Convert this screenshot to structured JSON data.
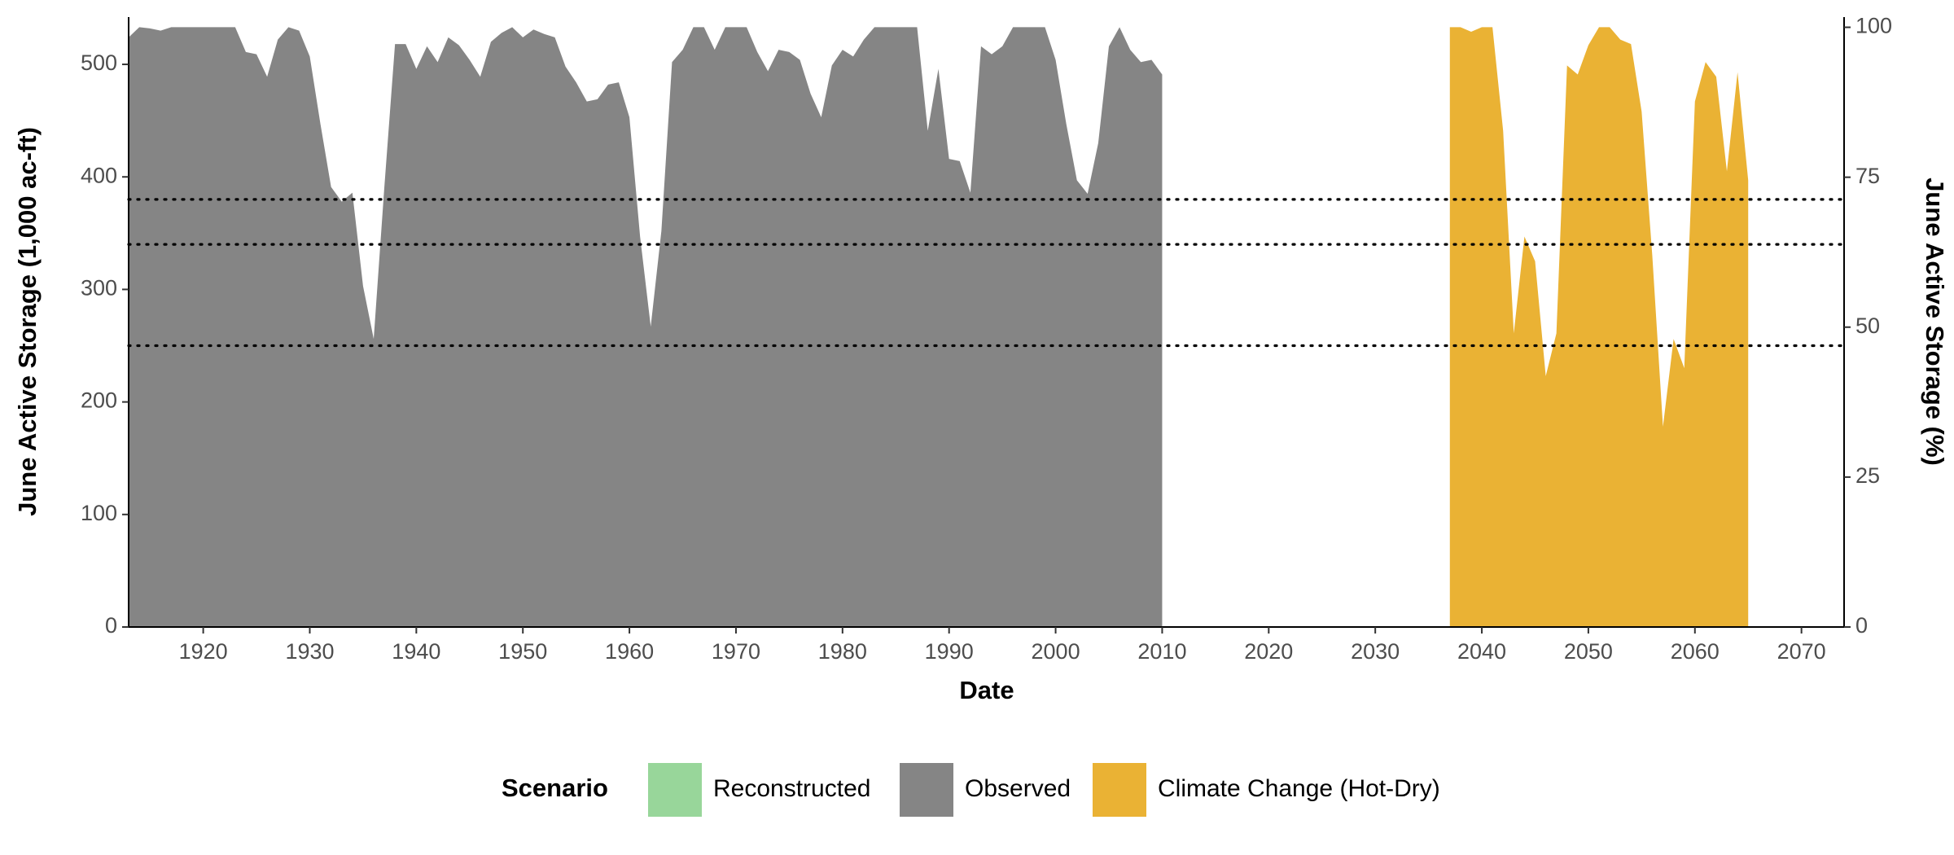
{
  "chart_data": {
    "type": "area",
    "x_label": "Date",
    "y_label": "June Active Storage (1,000 ac-ft)",
    "y2_label": "June Active Storage (%)",
    "legend_title": "Scenario",
    "xlim": [
      1913,
      2074
    ],
    "xticks": [
      1920,
      1930,
      1940,
      1950,
      1960,
      1970,
      1980,
      1990,
      2000,
      2010,
      2020,
      2030,
      2040,
      2050,
      2060,
      2070
    ],
    "ylim": [
      0,
      542
    ],
    "yticks": [
      0,
      100,
      200,
      300,
      400,
      500
    ],
    "y2lim": [
      0,
      101.7
    ],
    "y2ticks": [
      0,
      25,
      50,
      75,
      100
    ],
    "hlines": [
      380,
      340,
      250
    ],
    "series": [
      {
        "name": "Reconstructed",
        "color": "#98d69a",
        "x": [],
        "values": []
      },
      {
        "name": "Observed",
        "color": "#858585",
        "x": [
          1913,
          1914,
          1915,
          1916,
          1917,
          1918,
          1919,
          1920,
          1921,
          1922,
          1923,
          1924,
          1925,
          1926,
          1927,
          1928,
          1929,
          1930,
          1931,
          1932,
          1933,
          1934,
          1935,
          1936,
          1937,
          1938,
          1939,
          1940,
          1941,
          1942,
          1943,
          1944,
          1945,
          1946,
          1947,
          1948,
          1949,
          1950,
          1951,
          1952,
          1953,
          1954,
          1955,
          1956,
          1957,
          1958,
          1959,
          1960,
          1961,
          1962,
          1963,
          1964,
          1965,
          1966,
          1967,
          1968,
          1969,
          1970,
          1971,
          1972,
          1973,
          1974,
          1975,
          1976,
          1977,
          1978,
          1979,
          1980,
          1981,
          1982,
          1983,
          1984,
          1985,
          1986,
          1987,
          1988,
          1989,
          1990,
          1991,
          1992,
          1993,
          1994,
          1995,
          1996,
          1997,
          1998,
          1999,
          2000,
          2001,
          2002,
          2003,
          2004,
          2005,
          2006,
          2007,
          2008,
          2009,
          2010
        ],
        "values": [
          524,
          533,
          532,
          530,
          533,
          533,
          533,
          533,
          533,
          533,
          533,
          511,
          509,
          489,
          522,
          533,
          530,
          507,
          447,
          391,
          378,
          386,
          303,
          256,
          391,
          518,
          518,
          496,
          516,
          502,
          524,
          517,
          504,
          489,
          520,
          528,
          533,
          524,
          531,
          527,
          524,
          498,
          484,
          467,
          469,
          482,
          484,
          453,
          347,
          267,
          352,
          502,
          513,
          533,
          533,
          513,
          533,
          533,
          533,
          511,
          494,
          513,
          511,
          504,
          474,
          453,
          499,
          513,
          507,
          522,
          533,
          533,
          533,
          533,
          533,
          441,
          496,
          416,
          414,
          386,
          516,
          509,
          516,
          533,
          533,
          533,
          533,
          504,
          447,
          397,
          385,
          430,
          516,
          533,
          513,
          502,
          504,
          491
        ]
      },
      {
        "name": "Climate Change (Hot-Dry)",
        "color": "#eab234",
        "x": [
          2037,
          2038,
          2039,
          2040,
          2041,
          2042,
          2043,
          2044,
          2045,
          2046,
          2047,
          2048,
          2049,
          2050,
          2051,
          2052,
          2053,
          2054,
          2055,
          2056,
          2057,
          2058,
          2059,
          2060,
          2061,
          2062,
          2063,
          2064,
          2065
        ],
        "values": [
          533,
          533,
          529,
          533,
          533,
          441,
          261,
          347,
          325,
          223,
          261,
          499,
          491,
          517,
          533,
          533,
          522,
          518,
          458,
          330,
          178,
          256,
          230,
          467,
          502,
          489,
          405,
          493,
          397
        ]
      }
    ]
  }
}
